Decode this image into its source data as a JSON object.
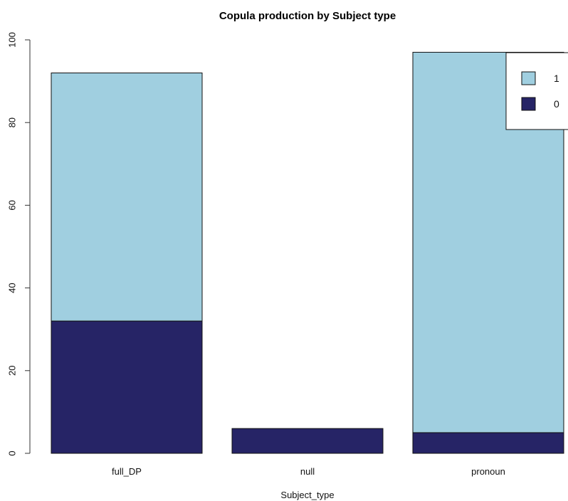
{
  "chart_data": {
    "type": "bar",
    "stacked": true,
    "title": "Copula production by Subject type",
    "xlabel": "Subject_type",
    "ylabel": "",
    "categories": [
      "full_DP",
      "null",
      "pronoun"
    ],
    "series": [
      {
        "name": "0",
        "values": [
          32,
          6,
          5
        ],
        "color": "#262466"
      },
      {
        "name": "1",
        "values": [
          60,
          0,
          92
        ],
        "color": "#a0cfe0"
      }
    ],
    "ylim": [
      0,
      100
    ],
    "yticks": [
      0,
      20,
      40,
      60,
      80,
      100
    ],
    "grid": false,
    "legend": {
      "placement": "top-right",
      "order": [
        "1",
        "0"
      ]
    }
  }
}
